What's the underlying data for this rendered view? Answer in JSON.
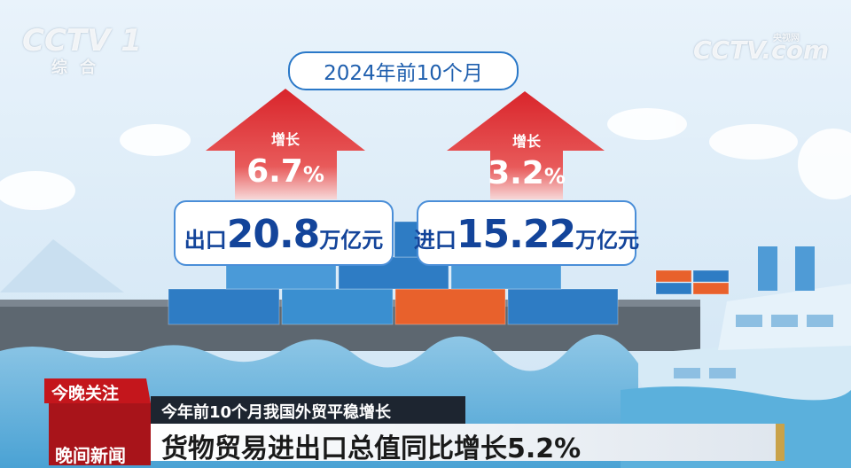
{
  "logo": {
    "channel": "CCTV 1",
    "name": "综合",
    "watermark": "CCTV.com",
    "watermark_sub": "央视网"
  },
  "infographic": {
    "period": "2024年前10个月",
    "export": {
      "growth_label": "增长",
      "growth_number": "6.7",
      "growth_unit": "%",
      "label": "出口",
      "amount": "20.8",
      "unit": "万亿元"
    },
    "import": {
      "growth_label": "增长",
      "growth_number": "3.2",
      "growth_unit": "%",
      "label": "进口",
      "amount": "15.22",
      "unit": "万亿元"
    }
  },
  "lower_third": {
    "tag": "今晚关注",
    "subtitle": "今年前10个月我国外贸平稳增长",
    "headline": "货物贸易进出口总值同比增长5.2%",
    "program": "晚间新闻"
  }
}
